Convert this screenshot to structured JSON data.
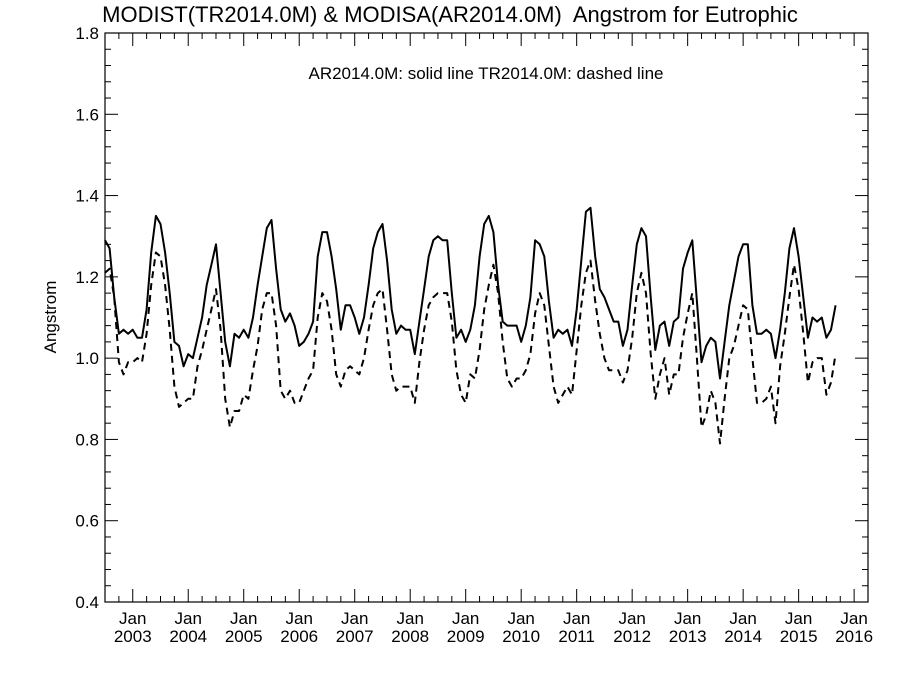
{
  "page": {
    "title": "MODIST(TR2014.0M) & MODISA(AR2014.0M)  Angstrom for Eutrophic",
    "legend_text": "AR2014.0M: solid line   TR2014.0M: dashed line"
  },
  "chart_data": {
    "type": "line",
    "title": "MODIST(TR2014.0M) & MODISA(AR2014.0M)  Angstrom for Eutrophic",
    "xlabel": "",
    "ylabel": "Angstrom",
    "ylim": [
      0.4,
      1.8
    ],
    "yticks": [
      0.4,
      0.6,
      0.8,
      1.0,
      1.2,
      1.4,
      1.6,
      1.8
    ],
    "ytick_labels": [
      "0.4",
      "0.6",
      "0.8",
      "1.0",
      "1.2",
      "1.4",
      "1.6",
      "1.8"
    ],
    "xlim": [
      "2002-07",
      "2016-04"
    ],
    "xtick_labels": [
      {
        "month": "Jan",
        "year": "2003"
      },
      {
        "month": "Jan",
        "year": "2004"
      },
      {
        "month": "Jan",
        "year": "2005"
      },
      {
        "month": "Jan",
        "year": "2006"
      },
      {
        "month": "Jan",
        "year": "2007"
      },
      {
        "month": "Jan",
        "year": "2008"
      },
      {
        "month": "Jan",
        "year": "2009"
      },
      {
        "month": "Jan",
        "year": "2010"
      },
      {
        "month": "Jan",
        "year": "2011"
      },
      {
        "month": "Jan",
        "year": "2012"
      },
      {
        "month": "Jan",
        "year": "2013"
      },
      {
        "month": "Jan",
        "year": "2014"
      },
      {
        "month": "Jan",
        "year": "2015"
      },
      {
        "month": "Jan",
        "year": "2016"
      }
    ],
    "annotation": "AR2014.0M: solid line   TR2014.0M: dashed line",
    "grid": false,
    "x_start": "2002-07",
    "series": [
      {
        "line_style": "solid",
        "values": [
          1.29,
          1.27,
          1.15,
          1.06,
          1.07,
          1.06,
          1.07,
          1.05,
          1.05,
          1.12,
          1.26,
          1.35,
          1.33,
          1.26,
          1.16,
          1.04,
          1.03,
          0.98,
          1.01,
          1.0,
          1.05,
          1.1,
          1.18,
          1.23,
          1.28,
          1.16,
          1.04,
          0.98,
          1.06,
          1.05,
          1.07,
          1.05,
          1.1,
          1.18,
          1.25,
          1.32,
          1.34,
          1.22,
          1.12,
          1.09,
          1.11,
          1.08,
          1.03,
          1.04,
          1.06,
          1.09,
          1.25,
          1.31,
          1.31,
          1.25,
          1.17,
          1.07,
          1.13,
          1.13,
          1.1,
          1.06,
          1.1,
          1.18,
          1.27,
          1.31,
          1.33,
          1.24,
          1.12,
          1.06,
          1.08,
          1.07,
          1.07,
          1.01,
          1.09,
          1.17,
          1.25,
          1.29,
          1.3,
          1.29,
          1.29,
          1.16,
          1.05,
          1.07,
          1.04,
          1.07,
          1.13,
          1.25,
          1.33,
          1.35,
          1.31,
          1.18,
          1.09,
          1.08,
          1.08,
          1.08,
          1.04,
          1.08,
          1.15,
          1.29,
          1.28,
          1.25,
          1.14,
          1.05,
          1.07,
          1.06,
          1.07,
          1.03,
          1.12,
          1.24,
          1.36,
          1.37,
          1.25,
          1.17,
          1.15,
          1.12,
          1.09,
          1.09,
          1.03,
          1.07,
          1.18,
          1.28,
          1.32,
          1.3,
          1.15,
          1.02,
          1.08,
          1.09,
          1.03,
          1.09,
          1.1,
          1.22,
          1.26,
          1.29,
          1.14,
          0.99,
          1.03,
          1.05,
          1.04,
          0.95,
          1.04,
          1.13,
          1.19,
          1.25,
          1.28,
          1.28,
          1.13,
          1.06,
          1.06,
          1.07,
          1.06,
          1.0,
          1.07,
          1.16,
          1.27,
          1.32,
          1.25,
          1.15,
          1.05,
          1.1,
          1.09,
          1.1,
          1.05,
          1.07,
          1.13
        ]
      },
      {
        "line_style": "dashed",
        "values": [
          1.21,
          1.22,
          1.15,
          0.99,
          0.96,
          0.99,
          0.99,
          1.0,
          0.99,
          1.06,
          1.18,
          1.26,
          1.25,
          1.18,
          1.07,
          0.93,
          0.88,
          0.89,
          0.9,
          0.9,
          0.98,
          1.02,
          1.07,
          1.12,
          1.17,
          1.07,
          0.9,
          0.83,
          0.87,
          0.87,
          0.91,
          0.9,
          0.97,
          1.03,
          1.12,
          1.16,
          1.16,
          1.08,
          0.92,
          0.9,
          0.92,
          0.89,
          0.89,
          0.92,
          0.95,
          0.97,
          1.1,
          1.16,
          1.14,
          1.07,
          0.96,
          0.93,
          0.97,
          0.98,
          0.97,
          0.96,
          1.0,
          1.07,
          1.13,
          1.16,
          1.17,
          1.07,
          0.96,
          0.92,
          0.93,
          0.93,
          0.93,
          0.89,
          0.99,
          1.07,
          1.13,
          1.15,
          1.16,
          1.16,
          1.16,
          1.09,
          0.97,
          0.91,
          0.89,
          0.96,
          0.95,
          1.02,
          1.12,
          1.18,
          1.23,
          1.16,
          1.04,
          0.95,
          0.93,
          0.95,
          0.95,
          0.97,
          1.01,
          1.11,
          1.16,
          1.13,
          1.03,
          0.93,
          0.89,
          0.91,
          0.93,
          0.91,
          1.02,
          1.13,
          1.21,
          1.24,
          1.14,
          1.06,
          1.0,
          0.97,
          0.97,
          0.97,
          0.94,
          0.97,
          1.05,
          1.16,
          1.21,
          1.16,
          1.01,
          0.9,
          0.96,
          1.0,
          0.91,
          0.96,
          0.96,
          1.05,
          1.11,
          1.16,
          1.0,
          0.83,
          0.86,
          0.92,
          0.89,
          0.79,
          0.9,
          1.0,
          1.03,
          1.08,
          1.13,
          1.12,
          1.0,
          0.89,
          0.89,
          0.9,
          0.93,
          0.84,
          0.98,
          1.06,
          1.15,
          1.23,
          1.17,
          1.06,
          0.94,
          0.99,
          1.0,
          1.0,
          0.91,
          0.94,
          1.01
        ]
      }
    ]
  }
}
